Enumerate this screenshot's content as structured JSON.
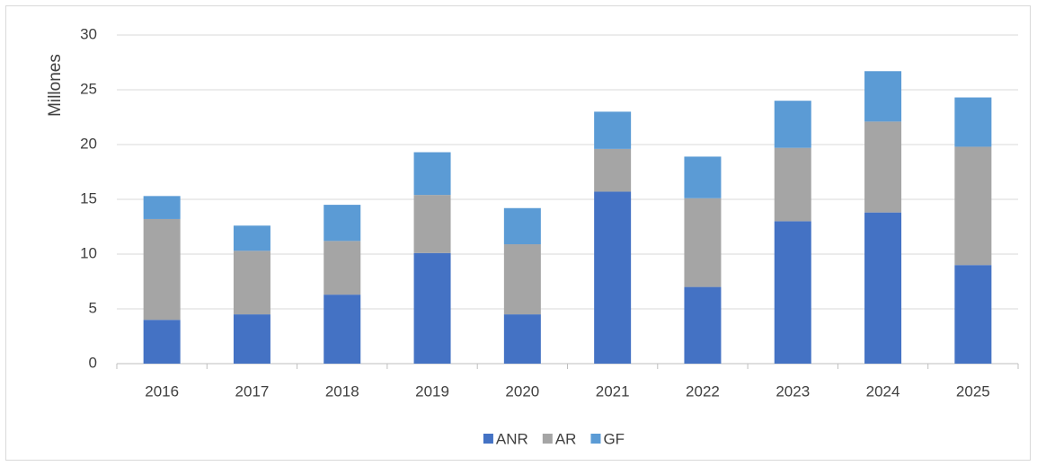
{
  "chart_data": {
    "type": "stacked_bar",
    "y_label": "Millones",
    "categories": [
      "2016",
      "2017",
      "2018",
      "2019",
      "2020",
      "2021",
      "2022",
      "2023",
      "2024",
      "2025"
    ],
    "series": [
      {
        "name": "ANR",
        "color": "#4472c4",
        "values": [
          4.0,
          4.5,
          6.3,
          10.1,
          4.5,
          15.7,
          7.0,
          13.0,
          13.8,
          9.0
        ]
      },
      {
        "name": "AR",
        "color": "#a5a5a5",
        "values": [
          9.2,
          5.8,
          4.9,
          5.3,
          6.4,
          3.9,
          8.1,
          6.7,
          8.3,
          10.8
        ]
      },
      {
        "name": "GF",
        "color": "#5b9bd5",
        "values": [
          2.1,
          2.3,
          3.3,
          3.9,
          3.3,
          3.4,
          3.8,
          4.3,
          4.6,
          4.5
        ]
      }
    ],
    "ylim": [
      0,
      30
    ],
    "yticks": [
      0,
      5,
      10,
      15,
      20,
      25,
      30
    ],
    "grid": true,
    "legend": "bottom"
  }
}
